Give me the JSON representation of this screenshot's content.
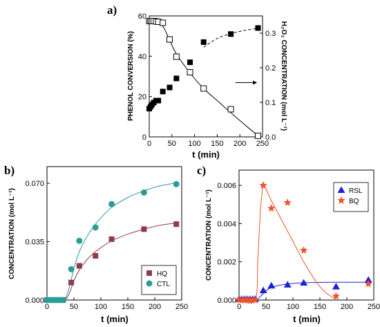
{
  "chart_data": [
    {
      "panel": "a)",
      "type": "scatter",
      "xlabel": "t (min)",
      "ylabel": "PHENOL CONVERSION (%)",
      "y2label": "H₂O₂ CONCENTRATION (mol L⁻¹)",
      "xlim": [
        0,
        250
      ],
      "ylim": [
        0,
        60
      ],
      "y2lim": [
        0,
        0.35
      ],
      "xticks": [
        "0",
        "50",
        "100",
        "150",
        "200",
        "250"
      ],
      "yticks": [
        "0",
        "20",
        "40",
        "60"
      ],
      "y2ticks": [
        "0.0",
        "0.1",
        "0.2",
        "0.3"
      ],
      "arrow_y": 0.157,
      "series": [
        {
          "marker": "filled-square",
          "axis": "left",
          "x": [
            0,
            3,
            6,
            10,
            15,
            20,
            30,
            45,
            60,
            90,
            120,
            180,
            240
          ],
          "y": [
            14,
            15,
            16,
            17,
            18,
            18,
            22.5,
            24.5,
            29,
            37,
            47,
            51,
            54
          ],
          "fit_x": [
            120,
            150,
            180,
            210,
            240
          ],
          "fit_y": [
            44.5,
            48.8,
            51.2,
            52.8,
            53.8
          ]
        },
        {
          "marker": "open-square",
          "axis": "right",
          "x": [
            0,
            3,
            6,
            10,
            15,
            20,
            30,
            45,
            60,
            90,
            120,
            180,
            240
          ],
          "y": [
            0.335,
            0.335,
            0.335,
            0.335,
            0.334,
            0.333,
            0.33,
            0.282,
            0.232,
            0.187,
            0.14,
            0.08,
            0.003
          ],
          "fit_x": [
            0,
            15,
            30,
            45,
            60,
            90,
            120,
            150,
            180,
            210,
            240
          ],
          "fit_y": [
            0.335,
            0.334,
            0.32,
            0.28,
            0.24,
            0.185,
            0.14,
            0.105,
            0.07,
            0.036,
            0.003
          ]
        }
      ]
    },
    {
      "panel": "b)",
      "type": "scatter",
      "xlabel": "t (min)",
      "ylabel": "CONCENTRATION (mol L⁻¹)",
      "xlim": [
        0,
        250
      ],
      "ylim": [
        0,
        0.08
      ],
      "xticks": [
        "0",
        "50",
        "100",
        "150",
        "200",
        "250"
      ],
      "yticks": [
        "0.000",
        "0.035",
        "0.070"
      ],
      "legend_position": "bottom-right",
      "series": [
        {
          "name": "HQ",
          "marker": "square",
          "color": "#8e3a4f",
          "x": [
            0,
            5,
            10,
            15,
            20,
            25,
            30,
            45,
            60,
            90,
            120,
            180,
            240
          ],
          "y": [
            0,
            0,
            0,
            0,
            0,
            0,
            0,
            0.0105,
            0.0205,
            0.0265,
            0.0365,
            0.0425,
            0.0455
          ],
          "fit_x": [
            0,
            30,
            40,
            50,
            60,
            75,
            90,
            105,
            120,
            150,
            180,
            210,
            240
          ],
          "fit_y": [
            0,
            0,
            0.003,
            0.0115,
            0.018,
            0.0245,
            0.029,
            0.0325,
            0.0355,
            0.0395,
            0.0425,
            0.0448,
            0.0462
          ]
        },
        {
          "name": "CTL",
          "marker": "circle",
          "color": "#2a9d96",
          "x": [
            0,
            5,
            10,
            15,
            20,
            25,
            30,
            45,
            60,
            90,
            120,
            180,
            240
          ],
          "y": [
            0,
            0,
            0,
            0,
            0,
            0,
            0,
            0.0185,
            0.0355,
            0.0435,
            0.0575,
            0.0645,
            0.0695
          ],
          "fit_x": [
            0,
            30,
            40,
            50,
            60,
            75,
            90,
            105,
            120,
            150,
            180,
            210,
            240
          ],
          "fit_y": [
            0,
            0,
            0.006,
            0.019,
            0.029,
            0.0385,
            0.0455,
            0.051,
            0.0555,
            0.0615,
            0.0655,
            0.0685,
            0.0702
          ]
        }
      ]
    },
    {
      "panel": "c)",
      "type": "scatter",
      "xlabel": "t (min)",
      "ylabel": "CONCENTRATION (mol L⁻¹)",
      "xlim": [
        0,
        250
      ],
      "ylim": [
        0,
        0.0068
      ],
      "xticks": [
        "0",
        "50",
        "100",
        "150",
        "200",
        "250"
      ],
      "yticks": [
        "0.000",
        "0.002",
        "0.004",
        "0.006"
      ],
      "legend_position": "top-right",
      "series": [
        {
          "name": "RSL",
          "marker": "triangle",
          "color": "#1f1fd6",
          "x": [
            0,
            5,
            10,
            15,
            20,
            25,
            30,
            45,
            60,
            90,
            120,
            180,
            240
          ],
          "y": [
            5e-05,
            5e-05,
            5e-05,
            5e-05,
            5e-05,
            5e-05,
            5e-05,
            0.0005,
            0.00075,
            0.0008,
            0.0009,
            0.0007,
            0.00105
          ],
          "fit_x": [
            0,
            30,
            40,
            50,
            60,
            80,
            100,
            120,
            150,
            180,
            210,
            240
          ],
          "fit_y": [
            0,
            0,
            0.0002,
            0.00048,
            0.00065,
            0.0008,
            0.00087,
            0.0009,
            0.00092,
            0.00093,
            0.00093,
            0.00093
          ]
        },
        {
          "name": "BQ",
          "marker": "star",
          "color": "#f0522b",
          "x": [
            0,
            5,
            10,
            15,
            20,
            25,
            30,
            45,
            60,
            90,
            120,
            180,
            240
          ],
          "y": [
            0,
            0,
            0,
            0,
            0,
            0,
            0,
            0.006,
            0.0048,
            0.0051,
            0.0026,
            0.0002,
            0.00085
          ],
          "fit_x": [
            0,
            30,
            35,
            40,
            45,
            50,
            60,
            75,
            90,
            105,
            120,
            135,
            150,
            165,
            180
          ],
          "fit_y": [
            0,
            0,
            0.0022,
            0.0048,
            0.006,
            0.0058,
            0.0052,
            0.0044,
            0.0036,
            0.0028,
            0.002,
            0.0013,
            0.0007,
            0.0003,
            5e-05
          ]
        }
      ]
    }
  ]
}
